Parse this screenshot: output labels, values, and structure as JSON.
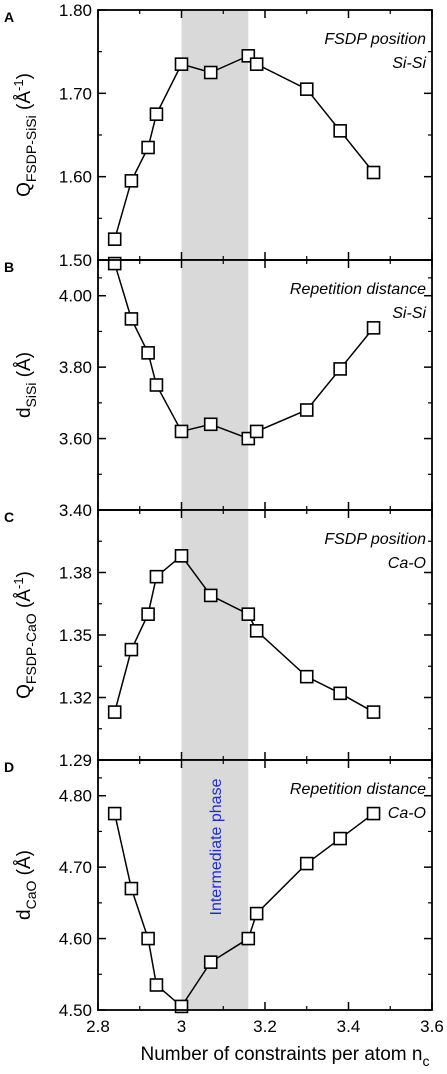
{
  "colors": {
    "shade": "#d9d9d9",
    "series": "#000000",
    "intermediate_label": "#1f2bd6"
  },
  "marker": "open-square",
  "shared_x": {
    "label_main": "Number of constraints per atom n",
    "label_sub": "c",
    "range": [
      2.8,
      3.6
    ],
    "ticks": [
      2.8,
      3,
      3.2,
      3.4,
      3.6
    ],
    "tick_labels": [
      "2.8",
      "3",
      "3.2",
      "3.4",
      "3.6"
    ]
  },
  "shaded_region": {
    "x_range": [
      3.0,
      3.16
    ],
    "label": "Intermediate phase"
  },
  "chart_data": [
    {
      "type": "line",
      "panel": "A",
      "annotation": [
        "FSDP position",
        "Si-Si"
      ],
      "ylabel": {
        "main": "Q",
        "sub": "FSDP-SiSi",
        "unit_pre": " (Å",
        "unit_sup": "-1",
        "unit_post": ")"
      },
      "ylim": [
        1.5,
        1.8
      ],
      "yticks": [
        1.5,
        1.6,
        1.7,
        1.8
      ],
      "ytick_labels": [
        "1.50",
        "1.60",
        "1.70",
        "1.80"
      ],
      "x": [
        2.84,
        2.88,
        2.92,
        2.94,
        3.0,
        3.07,
        3.16,
        3.18,
        3.3,
        3.38,
        3.46
      ],
      "y": [
        1.525,
        1.595,
        1.635,
        1.675,
        1.735,
        1.725,
        1.745,
        1.735,
        1.705,
        1.655,
        1.605
      ]
    },
    {
      "type": "line",
      "panel": "B",
      "annotation": [
        "Repetition distance",
        "Si-Si"
      ],
      "ylabel": {
        "main": "d",
        "sub": "SiSi",
        "unit_pre": " (Å)",
        "unit_sup": "",
        "unit_post": ""
      },
      "ylim": [
        3.4,
        4.1
      ],
      "yticks": [
        3.4,
        3.6,
        3.8,
        4.0
      ],
      "ytick_labels": [
        "3.40",
        "3.60",
        "3.80",
        "4.00"
      ],
      "x": [
        2.84,
        2.88,
        2.92,
        2.94,
        3.0,
        3.07,
        3.16,
        3.18,
        3.3,
        3.38,
        3.46
      ],
      "y": [
        4.09,
        3.935,
        3.84,
        3.75,
        3.62,
        3.64,
        3.6,
        3.62,
        3.68,
        3.795,
        3.91
      ]
    },
    {
      "type": "line",
      "panel": "C",
      "annotation": [
        "FSDP position",
        "Ca-O"
      ],
      "ylabel": {
        "main": "Q",
        "sub": "FSDP-CaO",
        "unit_pre": " (Å",
        "unit_sup": "-1",
        "unit_post": ")"
      },
      "ylim": [
        1.29,
        1.41
      ],
      "yticks": [
        1.29,
        1.32,
        1.35,
        1.38
      ],
      "ytick_labels": [
        "1.29",
        "1.32",
        "1.35",
        "1.38"
      ],
      "x": [
        2.84,
        2.88,
        2.92,
        2.94,
        3.0,
        3.07,
        3.16,
        3.18,
        3.3,
        3.38,
        3.46
      ],
      "y": [
        1.313,
        1.343,
        1.36,
        1.378,
        1.388,
        1.369,
        1.36,
        1.352,
        1.33,
        1.322,
        1.313
      ]
    },
    {
      "type": "line",
      "panel": "D",
      "annotation": [
        "Repetition distance",
        "Ca-O"
      ],
      "ylabel": {
        "main": "d",
        "sub": "CaO",
        "unit_pre": " (Å)",
        "unit_sup": "",
        "unit_post": ""
      },
      "ylim": [
        4.5,
        4.85
      ],
      "yticks": [
        4.5,
        4.6,
        4.7,
        4.8
      ],
      "ytick_labels": [
        "4.50",
        "4.60",
        "4.70",
        "4.80"
      ],
      "x": [
        2.84,
        2.88,
        2.92,
        2.94,
        3.0,
        3.07,
        3.16,
        3.18,
        3.3,
        3.38,
        3.46
      ],
      "y": [
        4.775,
        4.67,
        4.6,
        4.535,
        4.505,
        4.567,
        4.6,
        4.635,
        4.705,
        4.74,
        4.775
      ]
    }
  ]
}
